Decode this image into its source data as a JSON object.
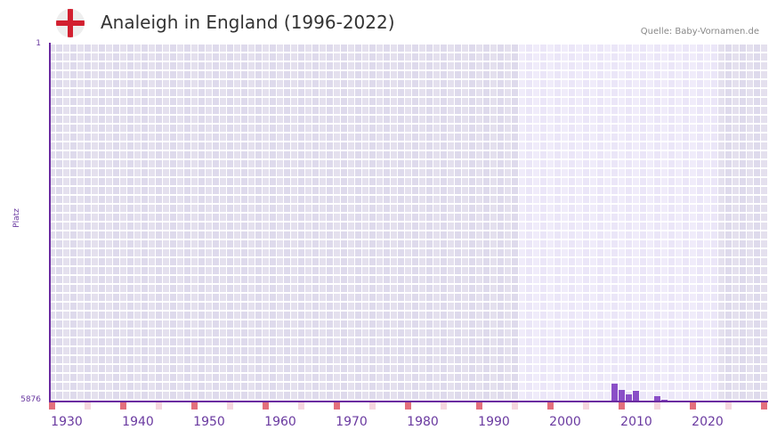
{
  "header": {
    "title": "Analeigh in England (1996-2022)",
    "source": "Quelle: Baby-Vornamen.de",
    "flag_icon": "england-flag-icon"
  },
  "colors": {
    "bar": "#8a4fc7",
    "axis": "#6a2aa0",
    "grid_dark": "#e4e0ee",
    "grid_light": "#f0ecfa",
    "marker_strong": "#e36f7c",
    "marker_light": "#f6d6de",
    "flag_red": "#d22030"
  },
  "chart_data": {
    "type": "bar",
    "title": "Analeigh in England (1996-2022)",
    "xlabel": "",
    "ylabel": "Platz",
    "y_ticks": [
      "1",
      "5876"
    ],
    "ylim": [
      5876,
      1
    ],
    "x_ticks": [
      "1930",
      "1940",
      "1950",
      "1960",
      "1970",
      "1980",
      "1990",
      "2000",
      "2010",
      "2020"
    ],
    "x_range": [
      1928,
      2028
    ],
    "highlight_range": [
      1994,
      2021
    ],
    "grid": true,
    "categories": [
      "2007",
      "2008",
      "2009",
      "2010",
      "2013",
      "2014"
    ],
    "values": [
      5597,
      5700,
      5773,
      5714,
      5802,
      5861
    ]
  }
}
